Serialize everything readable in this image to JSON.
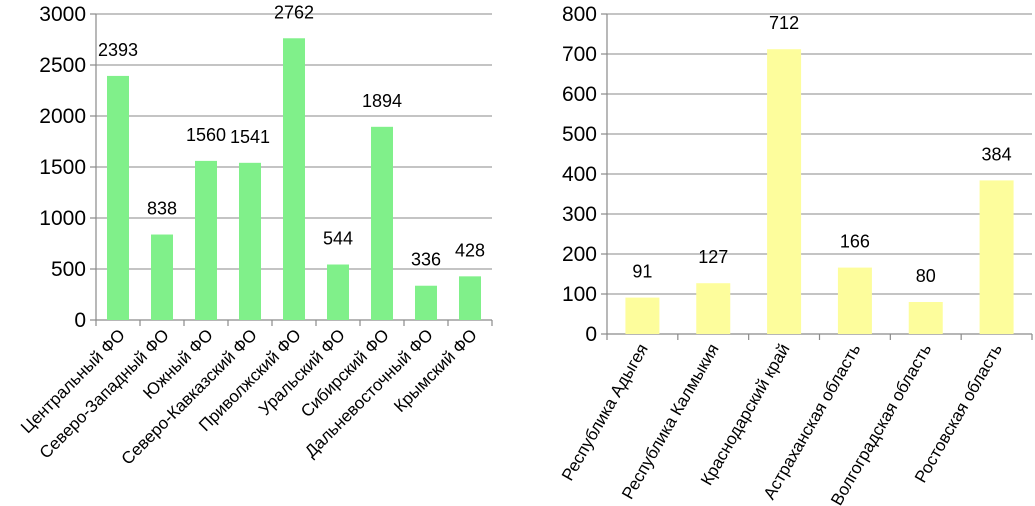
{
  "chart_data": [
    {
      "type": "bar",
      "categories": [
        "Центральный ФО",
        "Северо-Западный ФО",
        "Южный ФО",
        "Северо-Кавказский ФО",
        "Приволжский ФО",
        "Уральский ФО",
        "Сибирский ФО",
        "Дальневосточный ФО",
        "Крымский ФО"
      ],
      "values": [
        2393,
        838,
        1560,
        1541,
        2762,
        544,
        1894,
        336,
        428
      ],
      "ylim": [
        0,
        3000
      ],
      "yticks": [
        0,
        500,
        1000,
        1500,
        2000,
        2500,
        3000
      ],
      "grid": true,
      "legend": "none",
      "bar_color": "#80f08a"
    },
    {
      "type": "bar",
      "categories": [
        "Республика Адыгея",
        "Республика Калмыкия",
        "Краснодарский край",
        "Астраханская область",
        "Волгоградская область",
        "Ростовская область"
      ],
      "values": [
        91,
        127,
        712,
        166,
        80,
        384
      ],
      "ylim": [
        0,
        800
      ],
      "yticks": [
        0,
        100,
        200,
        300,
        400,
        500,
        600,
        700,
        800
      ],
      "grid": true,
      "legend": "none",
      "bar_color": "#fdfd9c"
    }
  ]
}
